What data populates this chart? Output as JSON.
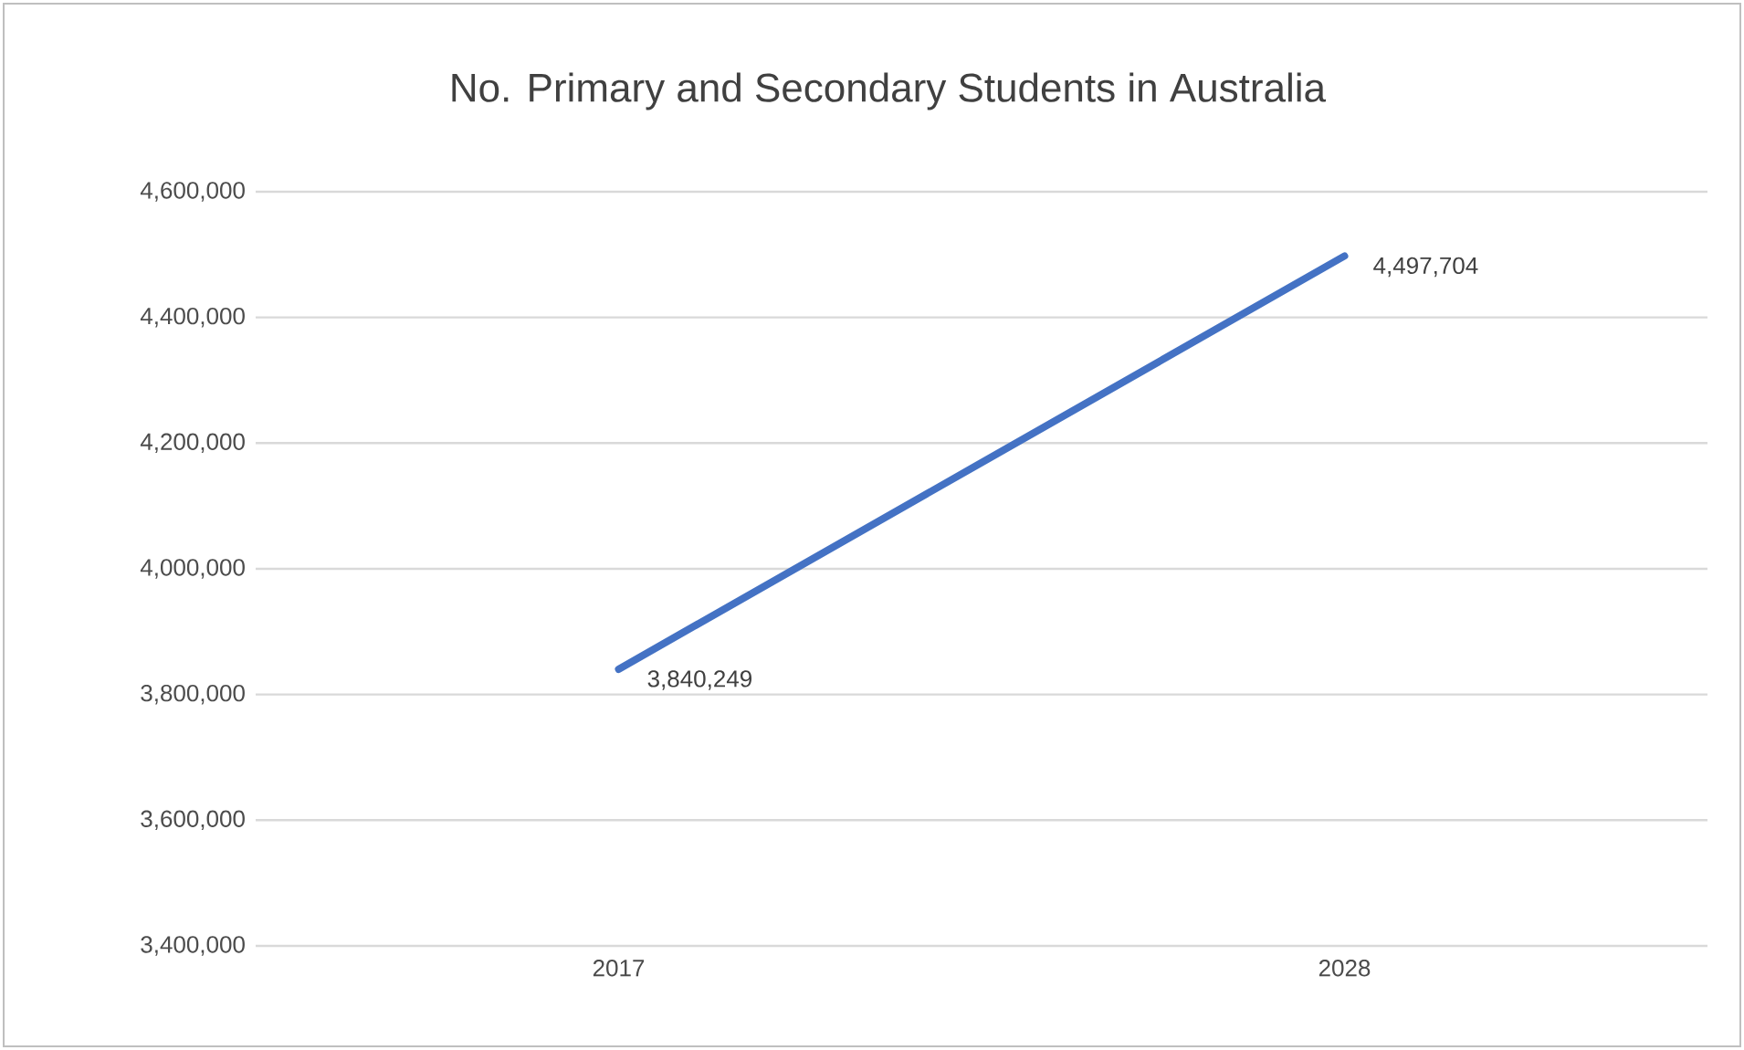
{
  "chart_data": {
    "type": "line",
    "title": "No. Primary and Secondary Students in Australia",
    "categories": [
      "2017",
      "2028"
    ],
    "values": [
      3840249,
      4497704
    ],
    "value_labels": [
      "3,840,249",
      "4,497,704"
    ],
    "color": "#4472c4",
    "ylim": [
      3400000,
      4600000
    ],
    "yticks": [
      {
        "value": 3400000,
        "label": "3,400,000"
      },
      {
        "value": 3600000,
        "label": "3,600,000"
      },
      {
        "value": 3800000,
        "label": "3,800,000"
      },
      {
        "value": 4000000,
        "label": "4,000,000"
      },
      {
        "value": 4200000,
        "label": "4,200,000"
      },
      {
        "value": 4400000,
        "label": "4,400,000"
      },
      {
        "value": 4600000,
        "label": "4,600,000"
      }
    ],
    "grid": "y",
    "marker": "none",
    "line_style": "solid"
  }
}
